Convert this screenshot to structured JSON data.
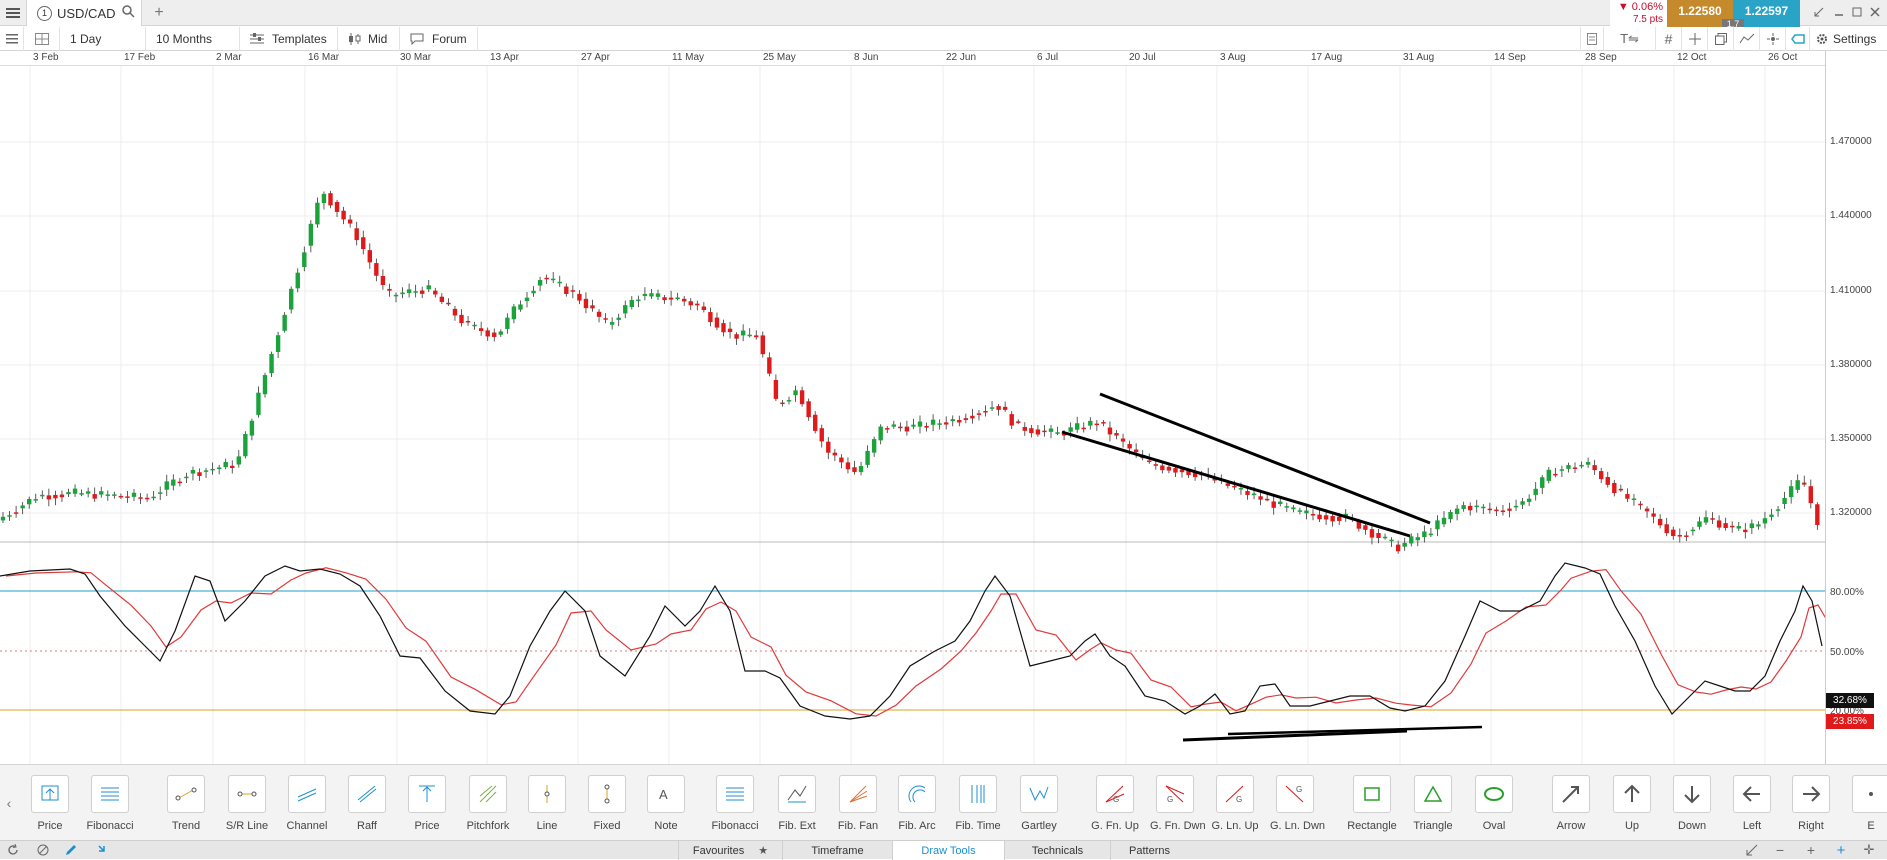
{
  "instrument": {
    "tab_number": "1",
    "symbol": "USD/CAD"
  },
  "quote": {
    "change_pct": "▼ 0.06%",
    "change_pts": "7.5 pts",
    "sell": "1.22580",
    "spread": "1.7",
    "buy": "1.22597"
  },
  "toolbar": {
    "interval": "1 Day",
    "range": "10 Months",
    "templates": "Templates",
    "price_type": "Mid",
    "forum": "Forum",
    "settings": "Settings"
  },
  "date_axis": [
    "3 Feb",
    "17 Feb",
    "2 Mar",
    "16 Mar",
    "30 Mar",
    "13 Apr",
    "27 Apr",
    "11 May",
    "25 May",
    "8 Jun",
    "22 Jun",
    "6 Jul",
    "20 Jul",
    "3 Aug",
    "17 Aug",
    "31 Aug",
    "14 Sep",
    "28 Sep",
    "12 Oct",
    "26 Oct"
  ],
  "price_axis": [
    "1.470000",
    "1.440000",
    "1.410000",
    "1.380000",
    "1.350000",
    "1.320000"
  ],
  "osc_axis": [
    "80.00%",
    "50.00%",
    "20.00%"
  ],
  "osc_values": {
    "k": "32.68%",
    "d": "23.85%"
  },
  "colors": {
    "up": "#1aa33a",
    "down": "#e0191b",
    "k_line": "#111111",
    "d_line": "#e03a3a",
    "overbought": "#1aa0c8",
    "oversold": "#d9a520",
    "sell": "#c58a2b",
    "buy": "#2aa4c6"
  },
  "draw_tools": [
    {
      "label": "Price",
      "icon": "price-arrow-icon"
    },
    {
      "label": "Fibonacci",
      "icon": "fibonacci-icon"
    },
    {
      "label": "Trend",
      "icon": "trend-line-icon"
    },
    {
      "label": "S/R Line",
      "icon": "sr-line-icon"
    },
    {
      "label": "Channel",
      "icon": "channel-icon"
    },
    {
      "label": "Raff",
      "icon": "raff-icon"
    },
    {
      "label": "Price",
      "icon": "price-range-icon"
    },
    {
      "label": "Pitchfork",
      "icon": "pitchfork-icon"
    },
    {
      "label": "Line",
      "icon": "line-icon"
    },
    {
      "label": "Fixed",
      "icon": "fixed-icon"
    },
    {
      "label": "Note",
      "icon": "note-icon"
    },
    {
      "label": "Fibonacci",
      "icon": "fibonacci-icon"
    },
    {
      "label": "Fib. Ext",
      "icon": "fib-ext-icon"
    },
    {
      "label": "Fib. Fan",
      "icon": "fib-fan-icon"
    },
    {
      "label": "Fib. Arc",
      "icon": "fib-arc-icon"
    },
    {
      "label": "Fib. Time",
      "icon": "fib-time-icon"
    },
    {
      "label": "Gartley",
      "icon": "gartley-icon"
    },
    {
      "label": "G. Fn. Up",
      "icon": "gann-fan-up-icon"
    },
    {
      "label": "G. Fn. Dwn",
      "icon": "gann-fan-down-icon"
    },
    {
      "label": "G. Ln. Up",
      "icon": "gann-line-up-icon"
    },
    {
      "label": "G. Ln. Dwn",
      "icon": "gann-line-down-icon"
    },
    {
      "label": "Rectangle",
      "icon": "rectangle-icon"
    },
    {
      "label": "Triangle",
      "icon": "triangle-icon"
    },
    {
      "label": "Oval",
      "icon": "oval-icon"
    },
    {
      "label": "Arrow",
      "icon": "arrow-icon"
    },
    {
      "label": "Up",
      "icon": "arrow-up-icon"
    },
    {
      "label": "Down",
      "icon": "arrow-down-icon"
    },
    {
      "label": "Left",
      "icon": "arrow-left-icon"
    },
    {
      "label": "Right",
      "icon": "arrow-right-icon"
    },
    {
      "label": "E",
      "icon": "more-icon"
    }
  ],
  "bottom_tabs": [
    {
      "label": "Favourites"
    },
    {
      "label": "Timeframe"
    },
    {
      "label": "Draw Tools",
      "active": true
    },
    {
      "label": "Technicals"
    },
    {
      "label": "Patterns"
    }
  ]
}
